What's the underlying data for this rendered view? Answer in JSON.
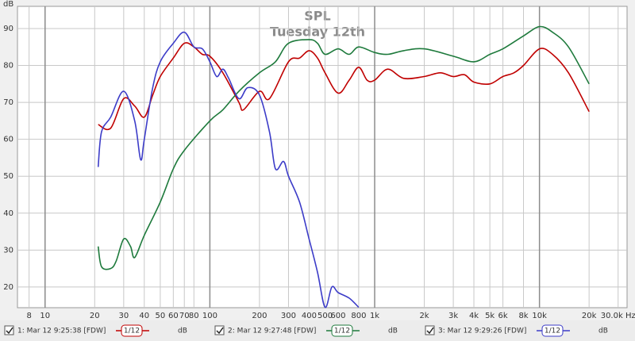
{
  "chart_data": {
    "type": "line",
    "title": "SPL",
    "subtitle": "Tuesday 12th",
    "y_label": "dB",
    "x_scale": "log",
    "grid": true,
    "xlim": [
      6.8,
      34000
    ],
    "ylim": [
      14.4,
      96
    ],
    "xticks": [
      8,
      10,
      20,
      30,
      40,
      50,
      60,
      70,
      80,
      100,
      200,
      300,
      400,
      500,
      600,
      800,
      {
        "value": 1000,
        "label": "1k"
      },
      {
        "value": 2000,
        "label": "2k"
      },
      {
        "value": 3000,
        "label": "3k"
      },
      {
        "value": 4000,
        "label": "4k"
      },
      {
        "value": 5000,
        "label": "5k"
      },
      {
        "value": 6000,
        "label": "6k"
      },
      {
        "value": 8000,
        "label": "8k"
      },
      {
        "value": 10000,
        "label": "10k"
      },
      {
        "value": 20000,
        "label": "20k"
      },
      {
        "value": 30000,
        "label": "30.0k Hz"
      }
    ],
    "yticks": [
      20,
      30,
      40,
      50,
      60,
      70,
      80,
      90
    ],
    "series": [
      {
        "name": "1: Mar 12 9:25:38 [FDW]",
        "smoothing": "1/12",
        "unit": "dB",
        "color": "#c00000",
        "x": [
          21,
          25,
          30,
          35,
          40,
          45,
          50,
          60,
          70,
          80,
          90,
          100,
          120,
          150,
          160,
          200,
          230,
          300,
          350,
          400,
          450,
          500,
          600,
          700,
          800,
          900,
          1000,
          1200,
          1500,
          2000,
          2500,
          3000,
          3500,
          4000,
          5000,
          6000,
          7000,
          8000,
          10000,
          12000,
          15000,
          20000
        ],
        "values": [
          64,
          63,
          71,
          69,
          66,
          72,
          77,
          82,
          86,
          85,
          83,
          82.5,
          78,
          70,
          68,
          73,
          71,
          81,
          82,
          84,
          82,
          78,
          72.5,
          76,
          79.5,
          76,
          76,
          79,
          76.5,
          77,
          78,
          77,
          77.5,
          75.5,
          75,
          77,
          78,
          80,
          84.5,
          83,
          78,
          67.5
        ]
      },
      {
        "name": "2: Mar 12 9:27:48 [FDW]",
        "smoothing": "1/12",
        "unit": "dB",
        "color": "#1e7a3c",
        "x": [
          21,
          22,
          25,
          27,
          30,
          33,
          35,
          40,
          50,
          60,
          70,
          100,
          120,
          150,
          200,
          250,
          300,
          400,
          450,
          500,
          600,
          700,
          800,
          1000,
          1200,
          1500,
          2000,
          3000,
          4000,
          5000,
          6000,
          8000,
          10000,
          12000,
          15000,
          20000
        ],
        "values": [
          31,
          25.5,
          25,
          27,
          33,
          31,
          28,
          34,
          43,
          52,
          57,
          65,
          68,
          73,
          78,
          81,
          86,
          87,
          86,
          83,
          84.5,
          83,
          85,
          83.5,
          83,
          84,
          84.5,
          82.5,
          81,
          83,
          84.5,
          88,
          90.5,
          89,
          85,
          75
        ]
      },
      {
        "name": "3: Mar 12 9:29:26 [FDW]",
        "smoothing": "1/12",
        "unit": "dB",
        "color": "#3c3cc8",
        "x": [
          21,
          22,
          25,
          30,
          35,
          38,
          40,
          45,
          50,
          60,
          70,
          80,
          90,
          100,
          110,
          120,
          130,
          150,
          170,
          200,
          230,
          250,
          280,
          300,
          350,
          400,
          450,
          500,
          550,
          600,
          700,
          800
        ],
        "values": [
          52.5,
          62,
          66,
          73,
          65,
          54.5,
          60,
          74,
          81,
          86,
          89,
          85,
          84.5,
          81,
          77,
          79,
          76.5,
          71,
          74,
          72,
          62,
          52,
          54,
          50,
          43,
          33,
          24,
          14.5,
          20,
          18.5,
          17,
          14.5
        ]
      }
    ]
  }
}
